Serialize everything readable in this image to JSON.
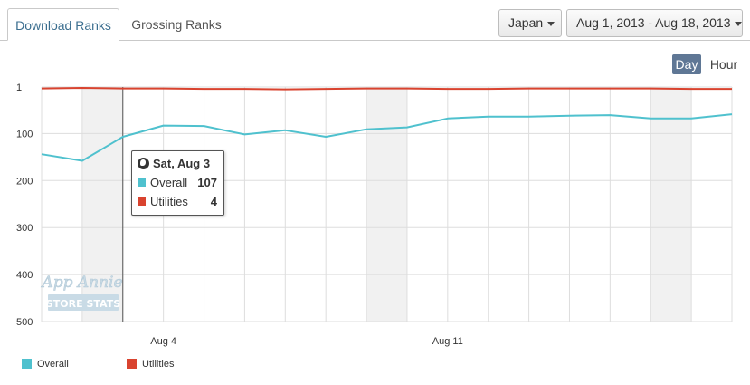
{
  "tabs": {
    "download_ranks": "Download Ranks",
    "grossing_ranks": "Grossing Ranks"
  },
  "filters": {
    "country": "Japan",
    "date_range": "Aug 1, 2013 - Aug 18, 2013"
  },
  "granularity": {
    "day": "Day",
    "hour": "Hour",
    "selected": "Day"
  },
  "watermark": {
    "line1": "App Annie",
    "line2": "STORE STATS"
  },
  "tooltip": {
    "date": "Sat, Aug 3",
    "rows": [
      {
        "label": "Overall",
        "value": "107"
      },
      {
        "label": "Utilities",
        "value": "4"
      }
    ]
  },
  "colors": {
    "overall": "#4fc1ce",
    "utilities": "#d9432f",
    "weekend_band": "#f1f1f1",
    "grid": "#dddddd"
  },
  "chart_data": {
    "type": "line",
    "title": "",
    "xlabel": "",
    "ylabel": "",
    "x": [
      "Aug 1",
      "Aug 2",
      "Aug 3",
      "Aug 4",
      "Aug 5",
      "Aug 6",
      "Aug 7",
      "Aug 8",
      "Aug 9",
      "Aug 10",
      "Aug 11",
      "Aug 12",
      "Aug 13",
      "Aug 14",
      "Aug 15",
      "Aug 16",
      "Aug 17",
      "Aug 18"
    ],
    "x_tick_labels": [
      {
        "x": "Aug 4",
        "label": "Aug 4"
      },
      {
        "x": "Aug 11",
        "label": "Aug 11"
      }
    ],
    "y_ticks": [
      1,
      100,
      200,
      300,
      400,
      500
    ],
    "ylim": [
      1,
      500
    ],
    "y_inverted": true,
    "grid": true,
    "weekend_bands": [
      [
        "Aug 2",
        "Aug 3"
      ],
      [
        "Aug 9",
        "Aug 10"
      ],
      [
        "Aug 16",
        "Aug 17"
      ]
    ],
    "legend_position": "bottom-left",
    "series": [
      {
        "name": "Overall",
        "values": [
          144,
          158,
          107,
          83,
          84,
          102,
          93,
          107,
          91,
          87,
          68,
          64,
          64,
          62,
          61,
          68,
          68,
          59
        ]
      },
      {
        "name": "Utilities",
        "values": [
          4,
          3,
          4,
          4,
          5,
          5,
          6,
          5,
          4,
          4,
          5,
          5,
          4,
          4,
          4,
          4,
          5,
          5
        ]
      }
    ]
  }
}
